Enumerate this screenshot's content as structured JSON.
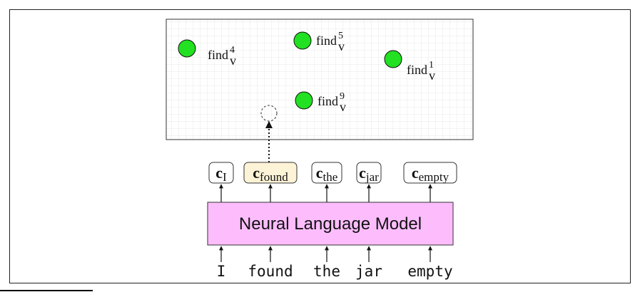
{
  "space": {
    "points": [
      {
        "label": "find",
        "sup": "4",
        "sub": "v"
      },
      {
        "label": "find",
        "sup": "5",
        "sub": "v"
      },
      {
        "label": "find",
        "sup": "1",
        "sub": "v"
      },
      {
        "label": "find",
        "sup": "9",
        "sub": "v"
      }
    ]
  },
  "contexts": [
    {
      "main": "c",
      "sub": "I",
      "highlighted": false
    },
    {
      "main": "c",
      "sub": "found",
      "highlighted": true
    },
    {
      "main": "c",
      "sub": "the",
      "highlighted": false
    },
    {
      "main": "c",
      "sub": "jar",
      "highlighted": false
    },
    {
      "main": "c",
      "sub": "empty",
      "highlighted": false
    }
  ],
  "model": {
    "label": "Neural Language Model"
  },
  "tokens": [
    "I",
    "found",
    "the",
    "jar",
    "empty"
  ],
  "colors": {
    "point_fill": "#22e022",
    "model_fill": "#fdbdfd",
    "highlight_fill": "#fdf3d6",
    "grid": "#e2e2e2"
  }
}
